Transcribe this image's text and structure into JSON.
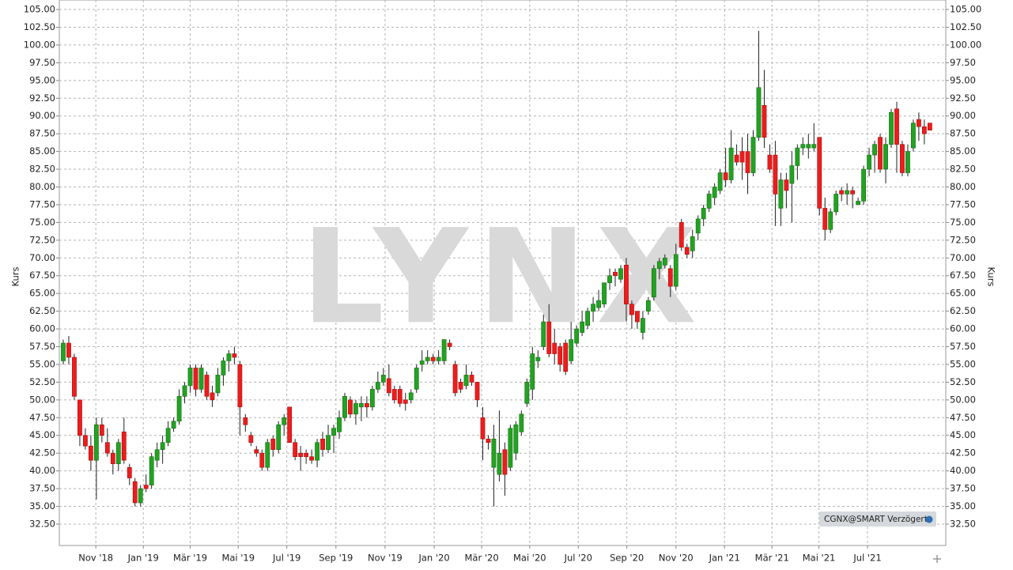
{
  "chart_data": {
    "type": "candlestick",
    "y_label": "Kurs",
    "watermark": "LYNX",
    "source_badge": "CGNX@SMART Verzögert",
    "up_color": "#22a322",
    "down_color": "#ee1c1c",
    "grid": true,
    "ylim": [
      29.49,
      106.34
    ],
    "yticks": [
      {
        "value": 32.5,
        "label": "32.50"
      },
      {
        "value": 35,
        "label": "35.00"
      },
      {
        "value": 37.5,
        "label": "37.50"
      },
      {
        "value": 40,
        "label": "40.00"
      },
      {
        "value": 42.5,
        "label": "42.50"
      },
      {
        "value": 45,
        "label": "45.00"
      },
      {
        "value": 47.5,
        "label": "47.50"
      },
      {
        "value": 50,
        "label": "50.00"
      },
      {
        "value": 52.5,
        "label": "52.50"
      },
      {
        "value": 55,
        "label": "55.00"
      },
      {
        "value": 57.5,
        "label": "57.50"
      },
      {
        "value": 60,
        "label": "60.00"
      },
      {
        "value": 62.5,
        "label": "62.50"
      },
      {
        "value": 65,
        "label": "65.00"
      },
      {
        "value": 67.5,
        "label": "67.50"
      },
      {
        "value": 70,
        "label": "70.00"
      },
      {
        "value": 72.5,
        "label": "72.50"
      },
      {
        "value": 75,
        "label": "75.00"
      },
      {
        "value": 77.5,
        "label": "77.50"
      },
      {
        "value": 80,
        "label": "80.00"
      },
      {
        "value": 82.5,
        "label": "82.50"
      },
      {
        "value": 85,
        "label": "85.00"
      },
      {
        "value": 87.5,
        "label": "87.50"
      },
      {
        "value": 90,
        "label": "90.00"
      },
      {
        "value": 92.5,
        "label": "92.50"
      },
      {
        "value": 95,
        "label": "95.00"
      },
      {
        "value": 97.5,
        "label": "97.50"
      },
      {
        "value": 100,
        "label": "100.00"
      },
      {
        "value": 102.5,
        "label": "102.50"
      },
      {
        "value": 105,
        "label": "105.00"
      }
    ],
    "xticks": [
      {
        "value": 5.9,
        "label": "Nov '18"
      },
      {
        "value": 14.5,
        "label": "Jan '19"
      },
      {
        "value": 23.0,
        "label": "Mär '19"
      },
      {
        "value": 31.7,
        "label": "Mai '19"
      },
      {
        "value": 40.5,
        "label": "Jul '19"
      },
      {
        "value": 49.4,
        "label": "Sep '19"
      },
      {
        "value": 58.3,
        "label": "Nov '19"
      },
      {
        "value": 67.2,
        "label": "Jan '20"
      },
      {
        "value": 75.8,
        "label": "Mär '20"
      },
      {
        "value": 84.5,
        "label": "Mai '20"
      },
      {
        "value": 93.3,
        "label": "Jul '20"
      },
      {
        "value": 102.1,
        "label": "Sep '20"
      },
      {
        "value": 111.0,
        "label": "Nov '20"
      },
      {
        "value": 119.8,
        "label": "Jan '21"
      },
      {
        "value": 128.4,
        "label": "Mär '21"
      },
      {
        "value": 136.9,
        "label": "Mai '21"
      },
      {
        "value": 145.7,
        "label": "Jul '21"
      }
    ],
    "open": [
      55.5,
      58,
      56,
      50,
      45,
      43.5,
      41.5,
      46.5,
      44,
      42.5,
      41,
      45.5,
      40.5,
      38.5,
      35.5,
      38,
      38,
      41.5,
      43,
      44,
      46,
      47,
      50.5,
      52,
      54.5,
      51.5,
      53.5,
      51,
      51,
      53.5,
      55.5,
      56.5,
      55,
      47.5,
      45,
      43,
      42.5,
      40.5,
      44.5,
      43,
      46.5,
      49,
      44,
      42.5,
      42.5,
      42,
      41.5,
      44.5,
      43,
      45,
      45.5,
      47.5,
      50,
      48,
      49,
      49.5,
      49,
      51.5,
      52.5,
      53,
      51.5,
      51.5,
      50,
      50,
      51.5,
      55,
      55.5,
      56,
      55.5,
      55.5,
      58,
      55,
      52.5,
      52,
      53.5,
      52.5,
      47.5,
      44.5,
      40.5,
      39.5,
      43,
      40.5,
      42.5,
      45.5,
      49.5,
      51.5,
      55.5,
      57.5,
      61,
      58,
      57.5,
      58,
      55.5,
      58,
      59.5,
      60.5,
      62.5,
      63,
      63.5,
      66.5,
      68,
      67,
      69,
      63.5,
      62.5,
      59.5,
      62.5,
      64.5,
      68.5,
      69,
      68.5,
      66,
      75,
      71.5,
      71,
      73.5,
      75.5,
      77,
      78.5,
      79.5,
      82,
      81,
      84.5,
      85,
      85,
      82,
      87,
      91.5,
      84.5,
      84.5,
      77,
      81,
      80.5,
      83,
      85.5,
      85.5,
      85.5,
      87,
      77,
      74,
      76.5,
      79.5,
      79,
      79.5,
      77.5,
      78,
      82.5,
      84.5,
      87,
      82.5,
      86,
      91,
      86,
      82,
      85.5,
      89.5,
      88.5,
      89
    ],
    "high": [
      58.5,
      59,
      56.5,
      50,
      46,
      45,
      47.5,
      47.5,
      46,
      43,
      44.5,
      47.5,
      41,
      39,
      38,
      39.5,
      42.5,
      44,
      45,
      47,
      47.5,
      51.5,
      52.5,
      55,
      55,
      55,
      54,
      52,
      54.5,
      56,
      57,
      57.5,
      55.5,
      48,
      45.5,
      43.5,
      43,
      44.5,
      45,
      47,
      48,
      49,
      44.5,
      43.5,
      43,
      43,
      44.5,
      45.5,
      46.5,
      46.5,
      48.5,
      51,
      50.5,
      50,
      50.5,
      50.5,
      52,
      54,
      54.5,
      55,
      52,
      52,
      51,
      51.5,
      55,
      57,
      57,
      56.5,
      57,
      58.5,
      58.5,
      55.5,
      53,
      55,
      54,
      52.5,
      49,
      45,
      46.5,
      48.5,
      44,
      46.5,
      47,
      48.5,
      53,
      57.5,
      57,
      62,
      63.5,
      60,
      58,
      58.5,
      61,
      60.5,
      62.5,
      63,
      64.5,
      65.5,
      66.5,
      68.5,
      68.5,
      69,
      70,
      64,
      62.5,
      62.5,
      64.5,
      69,
      70,
      70.5,
      69,
      72,
      75.5,
      72,
      74,
      76,
      77.5,
      79.5,
      80.5,
      82.5,
      85.5,
      88,
      86,
      87,
      87.5,
      88,
      102,
      96.5,
      86,
      86.5,
      82,
      82,
      85,
      86,
      87,
      87.5,
      89,
      87,
      78.5,
      77,
      79.5,
      80,
      80.5,
      80,
      78.5,
      83,
      85.5,
      86.5,
      87.5,
      87,
      91,
      92,
      86.5,
      86,
      89.5,
      90.5,
      89.5,
      89
    ],
    "low": [
      55,
      55,
      50,
      43.5,
      43,
      40,
      36,
      44,
      42,
      39.5,
      40,
      41,
      38,
      35,
      35,
      37,
      37.5,
      40.5,
      41,
      43.5,
      45.5,
      46.5,
      49.5,
      51,
      50.5,
      51,
      50,
      49,
      50.5,
      52,
      54,
      55,
      45,
      45.5,
      43.5,
      42,
      40,
      40,
      42,
      42.5,
      45,
      44,
      41.5,
      40,
      41,
      41,
      40.5,
      42,
      42.5,
      42.5,
      44.5,
      47,
      47.5,
      46.5,
      47,
      47.5,
      48.5,
      51,
      52,
      50.5,
      49.5,
      49,
      48.5,
      49.5,
      51,
      54,
      55,
      55,
      55,
      55,
      57,
      50.5,
      51,
      51.5,
      52,
      49,
      41.5,
      43,
      35,
      38.5,
      36.5,
      40,
      41.5,
      45,
      49,
      50,
      54.5,
      57,
      56,
      55,
      54,
      53.5,
      55,
      57.5,
      59,
      60,
      61,
      62.5,
      63,
      65.5,
      66,
      66.5,
      61,
      60,
      60,
      58.5,
      62,
      64,
      67,
      68.5,
      64.5,
      65.5,
      71,
      70,
      70,
      72.5,
      74.5,
      76.5,
      77.5,
      79,
      80,
      80.5,
      83,
      81,
      79,
      81.5,
      86.5,
      85.5,
      82,
      74.5,
      74.5,
      77,
      75,
      81,
      84.5,
      84,
      85,
      76,
      72.5,
      73.5,
      76,
      78,
      77.5,
      77,
      77.5,
      77.5,
      81.5,
      82,
      82,
      80.5,
      85.5,
      82,
      81.5,
      81.5,
      85,
      86.5,
      86,
      88
    ],
    "close": [
      58,
      56,
      50.5,
      45,
      43.5,
      41.5,
      46.5,
      45,
      42.5,
      41,
      44,
      41.5,
      39,
      35.5,
      37.5,
      37.5,
      42,
      43,
      44,
      46,
      47,
      50.5,
      52,
      54.5,
      51.5,
      54.5,
      50.5,
      50,
      53.5,
      55.5,
      56.5,
      56,
      49,
      46.5,
      44,
      42.5,
      40.5,
      44,
      43,
      46.5,
      47.5,
      44,
      42,
      42,
      42,
      41.5,
      44,
      43,
      45,
      46,
      47.5,
      50.5,
      48,
      49.5,
      49.5,
      49,
      51.5,
      52.5,
      53.5,
      51,
      50,
      49.5,
      49.5,
      51,
      54.5,
      55.5,
      56,
      55.5,
      56,
      58.5,
      57.5,
      51,
      51.5,
      53.5,
      52.5,
      50,
      44.5,
      44,
      44.5,
      42.5,
      39.5,
      46,
      46.5,
      48,
      52.5,
      56.5,
      56,
      61,
      56.5,
      56.5,
      55,
      54,
      58.5,
      60,
      61,
      62.5,
      63.5,
      64,
      66.5,
      67.5,
      67.5,
      68.5,
      63.5,
      62,
      61,
      61.5,
      64,
      68.5,
      69.5,
      70,
      66,
      70.5,
      71.5,
      70.5,
      73,
      75.5,
      77,
      79,
      80,
      82,
      81,
      85.5,
      83.5,
      83.5,
      82,
      87,
      94,
      87,
      82.5,
      79,
      81,
      79.5,
      83,
      85.5,
      86,
      86,
      86,
      77,
      74,
      76.5,
      79,
      79,
      79.5,
      79,
      78,
      82.5,
      84.5,
      86,
      82.5,
      86,
      90.5,
      86,
      82,
      85,
      89,
      88.5,
      87.5,
      88
    ]
  }
}
